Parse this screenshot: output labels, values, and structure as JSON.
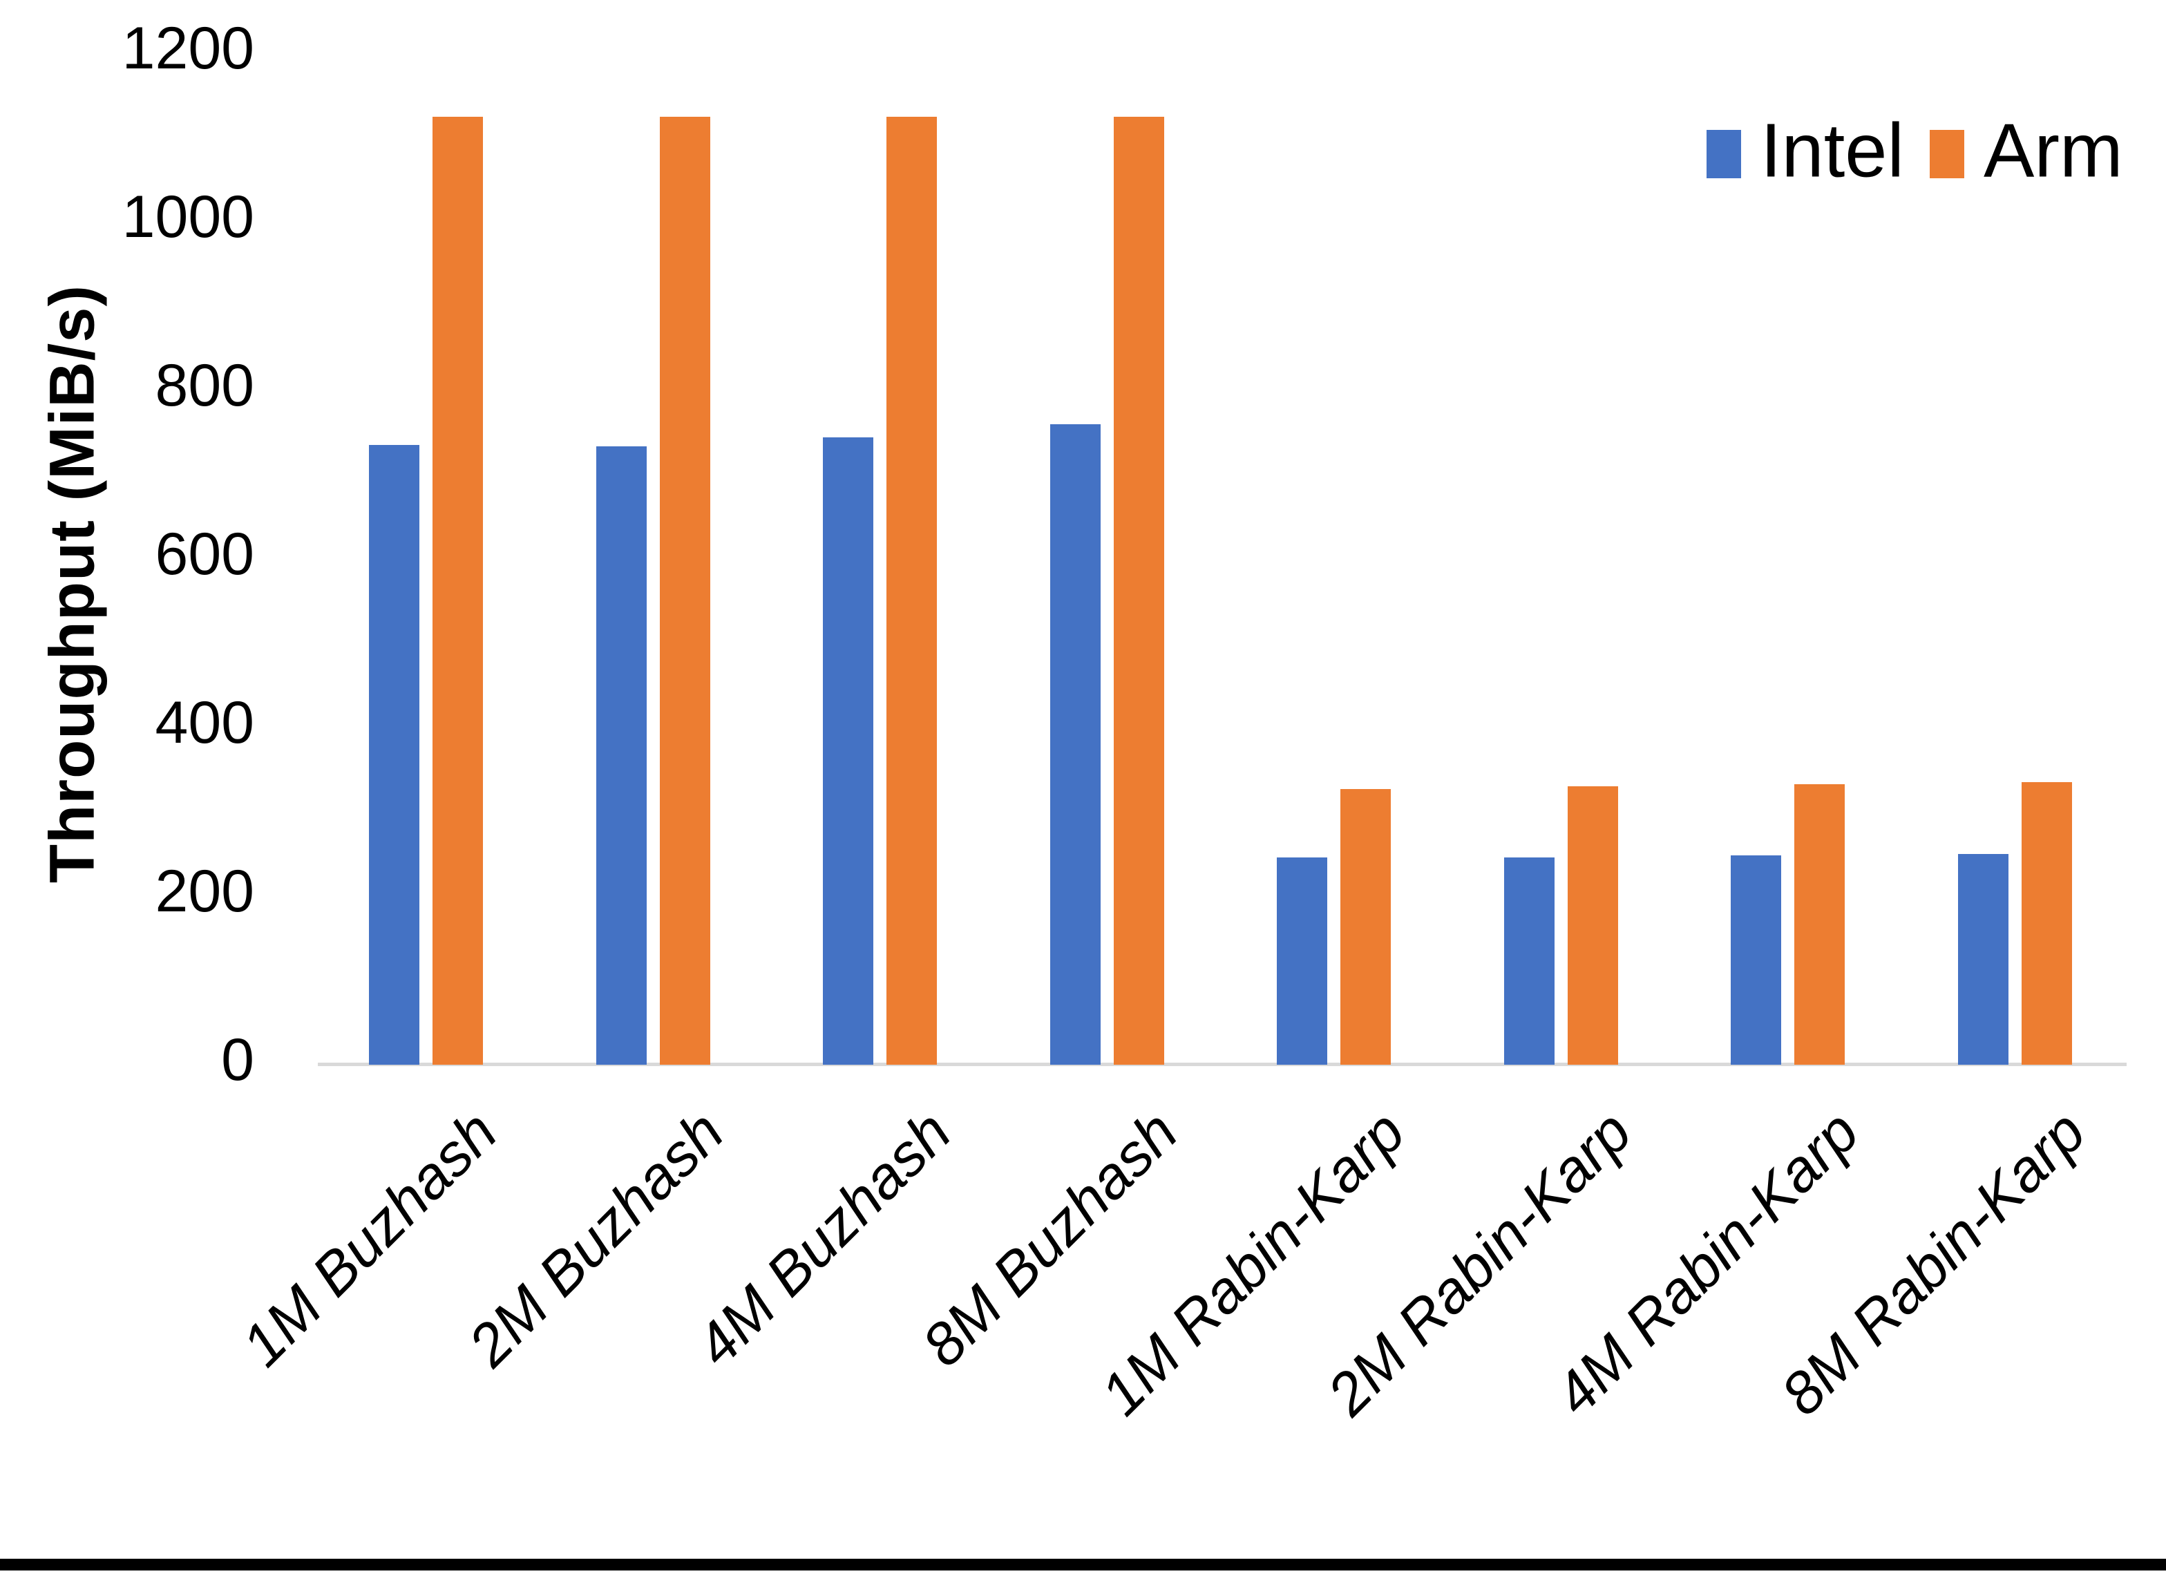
{
  "chart_data": {
    "type": "bar",
    "title": "",
    "xlabel": "",
    "ylabel": "Throughput (MiB/s)",
    "ylim": [
      0,
      1200
    ],
    "yticks": [
      0,
      200,
      400,
      600,
      800,
      1000,
      1200
    ],
    "grid": false,
    "legend_position": "top-right",
    "categories": [
      "1M Buzhash",
      "2M Buzhash",
      "4M Buzhash",
      "8M Buzhash",
      "1M Rabin-Karp",
      "2M Rabin-Karp",
      "4M Rabin-Karp",
      "8M Rabin-Karp"
    ],
    "series": [
      {
        "name": "Intel",
        "color": "#4472C4",
        "values": [
          735,
          734,
          744,
          760,
          246,
          246,
          248,
          250
        ]
      },
      {
        "name": "Arm",
        "color": "#ED7D31",
        "values": [
          1125,
          1125,
          1125,
          1125,
          327,
          330,
          333,
          335
        ]
      }
    ]
  },
  "colors": {
    "axis_line": "#D9D9D9",
    "text": "#000000",
    "bottom_border": "#000000"
  }
}
